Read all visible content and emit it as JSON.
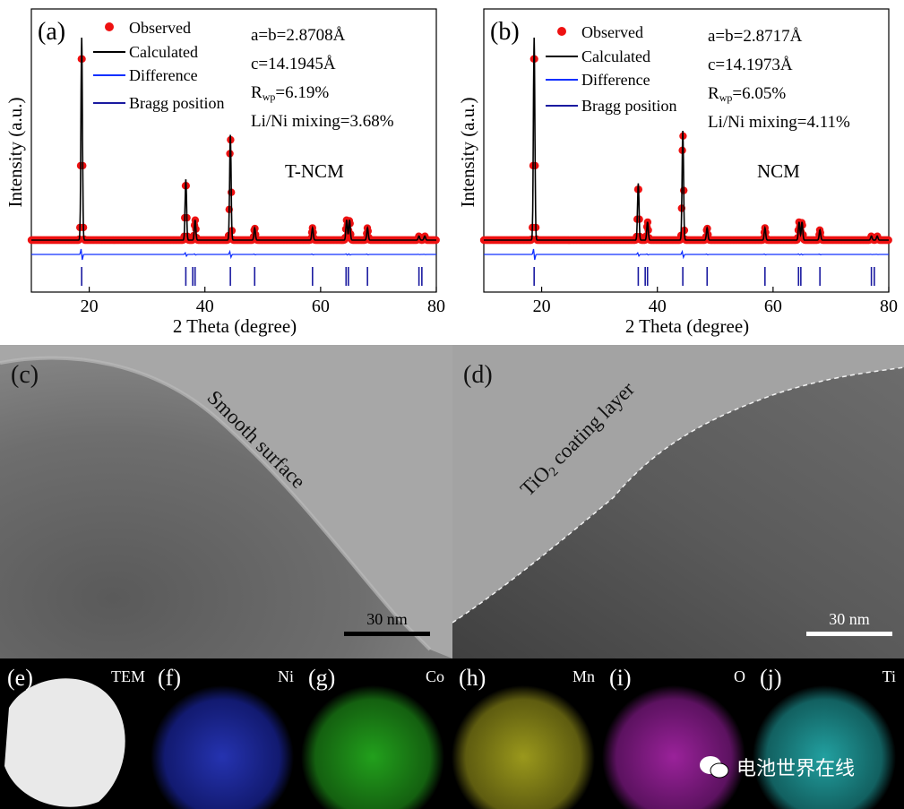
{
  "xrd": [
    {
      "label": "(a)",
      "legend": [
        "Observed",
        "Calculated",
        "Difference",
        "Bragg position"
      ],
      "params": [
        "a=b=2.8708Å",
        "c=14.1945Å",
        "6.19%",
        "Li/Ni mixing=3.68%"
      ],
      "rwp_prefix": "R",
      "rwp_sub": "wp",
      "rwp_eq": "=",
      "sample": "T-NCM",
      "ylabel": "Intensity (a.u.)",
      "xlabel": "2 Theta (degree)",
      "ticks": [
        20,
        40,
        60,
        80
      ]
    },
    {
      "label": "(b)",
      "legend": [
        "Observed",
        "Calculated",
        "Difference",
        "Bragg position"
      ],
      "params": [
        "a=b=2.8717Å",
        "c=14.1973Å",
        "6.05%",
        "Li/Ni mixing=4.11%"
      ],
      "rwp_prefix": "R",
      "rwp_sub": "wp",
      "rwp_eq": "=",
      "sample": "NCM",
      "ylabel": "Intensity (a.u.)",
      "xlabel": "2 Theta (degree)",
      "ticks": [
        20,
        40,
        60,
        80
      ]
    }
  ],
  "tem": {
    "c": {
      "label": "(c)",
      "annotation": "Smooth surface",
      "scalebar": "30 nm"
    },
    "d": {
      "label": "(d)",
      "annotation_pre": "TiO",
      "annotation_sub": "2",
      "annotation_post": " coating layer",
      "scalebar": "30 nm"
    }
  },
  "maps": [
    {
      "label": "(e)",
      "element": "TEM",
      "color": "#e8e8e8"
    },
    {
      "label": "(f)",
      "element": "Ni",
      "color": "#1a2aa0"
    },
    {
      "label": "(g)",
      "element": "Co",
      "color": "#1f8a1a"
    },
    {
      "label": "(h)",
      "element": "Mn",
      "color": "#8c8a18"
    },
    {
      "label": "(i)",
      "element": "O",
      "color": "#8a1c8a"
    },
    {
      "label": "(j)",
      "element": "Ti",
      "color": "#1f8a8a"
    }
  ],
  "watermark": "电池世界在线",
  "chart_data": [
    {
      "type": "line",
      "title": "T-NCM",
      "xlabel": "2 Theta (degree)",
      "ylabel": "Intensity (a.u.)",
      "xlim": [
        10,
        80
      ],
      "ylim": [
        0,
        100
      ],
      "series": [
        {
          "name": "Calculated",
          "peaks": [
            [
              18.7,
              100
            ],
            [
              36.7,
              30
            ],
            [
              38.3,
              10
            ],
            [
              44.4,
              52
            ],
            [
              48.6,
              6
            ],
            [
              58.6,
              6
            ],
            [
              64.5,
              10
            ],
            [
              65.0,
              10
            ],
            [
              68.1,
              6
            ],
            [
              77.0,
              2
            ],
            [
              78.0,
              2
            ]
          ]
        }
      ],
      "bragg": [
        18.7,
        36.7,
        37.9,
        38.3,
        44.4,
        48.6,
        58.6,
        64.4,
        64.8,
        68.1,
        77.0,
        77.5
      ]
    },
    {
      "type": "line",
      "title": "NCM",
      "xlabel": "2 Theta (degree)",
      "ylabel": "Intensity (a.u.)",
      "xlim": [
        10,
        80
      ],
      "ylim": [
        0,
        100
      ],
      "series": [
        {
          "name": "Calculated",
          "peaks": [
            [
              18.7,
              100
            ],
            [
              36.7,
              28
            ],
            [
              38.3,
              9
            ],
            [
              44.4,
              54
            ],
            [
              48.6,
              6
            ],
            [
              58.6,
              6
            ],
            [
              64.5,
              9
            ],
            [
              65.0,
              9
            ],
            [
              68.1,
              5
            ],
            [
              77.0,
              2
            ],
            [
              78.0,
              2
            ]
          ]
        }
      ],
      "bragg": [
        18.7,
        36.7,
        37.9,
        38.3,
        44.4,
        48.6,
        58.6,
        64.4,
        64.8,
        68.1,
        77.0,
        77.5
      ]
    }
  ]
}
